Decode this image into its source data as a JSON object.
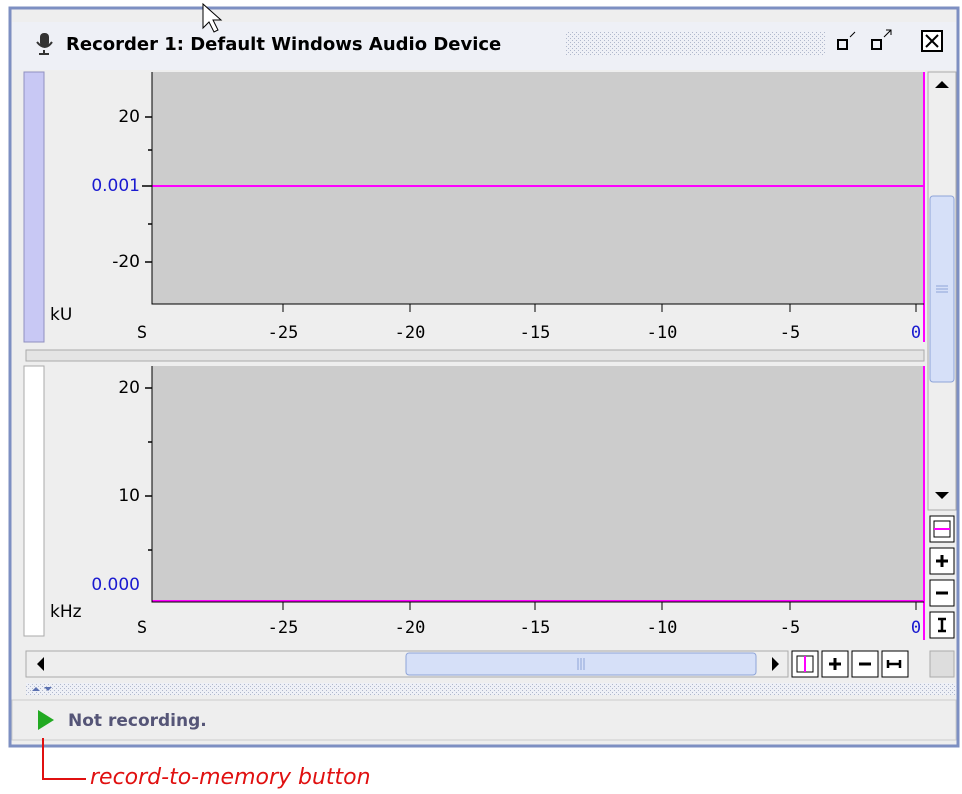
{
  "window": {
    "title": "Recorder 1: Default Windows Audio Device"
  },
  "top_plot": {
    "y_labels": [
      "20",
      "0.001",
      "-20"
    ],
    "unit": "kU",
    "x_labels": [
      "S",
      "-25",
      "-20",
      "-15",
      "-10",
      "-5",
      "0"
    ]
  },
  "bottom_plot": {
    "y_labels": [
      "20",
      "10",
      "0.000"
    ],
    "unit": "kHz",
    "x_labels": [
      "S",
      "-25",
      "-20",
      "-15",
      "-10",
      "-5",
      "0"
    ]
  },
  "status": {
    "text": "Not recording."
  },
  "annotation": {
    "text": "record-to-memory button"
  }
}
